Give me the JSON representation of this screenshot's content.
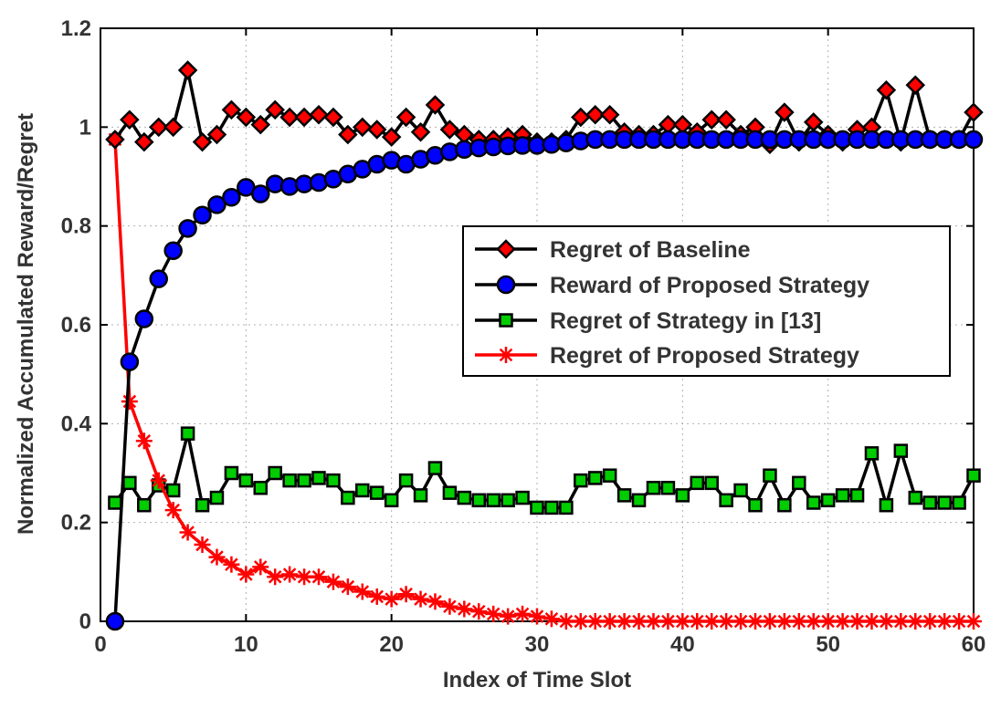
{
  "chart_data": {
    "type": "line",
    "title": "",
    "xlabel": "Index of Time Slot",
    "ylabel": "Normalized Accumulated Reward/Regret",
    "xlim": [
      0,
      60
    ],
    "ylim": [
      0,
      1.2
    ],
    "xticks": [
      0,
      10,
      20,
      30,
      40,
      50,
      60
    ],
    "yticks": [
      0,
      0.2,
      0.4,
      0.6,
      0.8,
      1,
      1.2
    ],
    "xtick_labels": [
      "0",
      "10",
      "20",
      "30",
      "40",
      "50",
      "60"
    ],
    "ytick_labels": [
      "0",
      "0.2",
      "0.4",
      "0.6",
      "0.8",
      "1",
      "1.2"
    ],
    "grid": true,
    "legend_position": "center-right",
    "series": [
      {
        "name": "Regret of Baseline",
        "marker": "diamond",
        "marker_color": "#ff0000",
        "line_color": "#000000",
        "x": [
          1,
          2,
          3,
          4,
          5,
          6,
          7,
          8,
          9,
          10,
          11,
          12,
          13,
          14,
          15,
          16,
          17,
          18,
          19,
          20,
          21,
          22,
          23,
          24,
          25,
          26,
          27,
          28,
          29,
          30,
          31,
          32,
          33,
          34,
          35,
          36,
          37,
          38,
          39,
          40,
          41,
          42,
          43,
          44,
          45,
          46,
          47,
          48,
          49,
          50,
          51,
          52,
          53,
          54,
          55,
          56,
          57,
          58,
          59,
          60
        ],
        "values": [
          0.975,
          1.015,
          0.97,
          1.0,
          1.0,
          1.115,
          0.97,
          0.985,
          1.035,
          1.02,
          1.005,
          1.035,
          1.02,
          1.02,
          1.025,
          1.02,
          0.985,
          1.0,
          0.995,
          0.98,
          1.02,
          0.99,
          1.045,
          0.995,
          0.985,
          0.975,
          0.975,
          0.98,
          0.985,
          0.97,
          0.97,
          0.975,
          1.02,
          1.025,
          1.025,
          0.99,
          0.985,
          0.985,
          1.005,
          1.005,
          0.99,
          1.015,
          1.015,
          0.985,
          1.0,
          0.965,
          1.03,
          0.97,
          1.01,
          0.985,
          0.97,
          0.995,
          1.0,
          1.075,
          0.97,
          1.085,
          0.975,
          0.975,
          0.975,
          1.03
        ]
      },
      {
        "name": "Reward of Proposed Strategy",
        "marker": "circle",
        "marker_color": "#0000ff",
        "line_color": "#000000",
        "x": [
          1,
          2,
          3,
          4,
          5,
          6,
          7,
          8,
          9,
          10,
          11,
          12,
          13,
          14,
          15,
          16,
          17,
          18,
          19,
          20,
          21,
          22,
          23,
          24,
          25,
          26,
          27,
          28,
          29,
          30,
          31,
          32,
          33,
          34,
          35,
          36,
          37,
          38,
          39,
          40,
          41,
          42,
          43,
          44,
          45,
          46,
          47,
          48,
          49,
          50,
          51,
          52,
          53,
          54,
          55,
          56,
          57,
          58,
          59,
          60
        ],
        "values": [
          0.0,
          0.525,
          0.612,
          0.693,
          0.75,
          0.795,
          0.822,
          0.843,
          0.858,
          0.878,
          0.865,
          0.885,
          0.88,
          0.885,
          0.888,
          0.895,
          0.905,
          0.915,
          0.925,
          0.933,
          0.925,
          0.935,
          0.943,
          0.95,
          0.955,
          0.958,
          0.96,
          0.962,
          0.963,
          0.963,
          0.965,
          0.968,
          0.972,
          0.975,
          0.975,
          0.975,
          0.975,
          0.975,
          0.975,
          0.975,
          0.975,
          0.975,
          0.975,
          0.975,
          0.975,
          0.975,
          0.975,
          0.975,
          0.975,
          0.975,
          0.975,
          0.975,
          0.975,
          0.975,
          0.975,
          0.975,
          0.975,
          0.975,
          0.975,
          0.975
        ]
      },
      {
        "name": "Regret of Strategy in [13]",
        "marker": "square",
        "marker_color": "#00cc00",
        "line_color": "#000000",
        "x": [
          1,
          2,
          3,
          4,
          5,
          6,
          7,
          8,
          9,
          10,
          11,
          12,
          13,
          14,
          15,
          16,
          17,
          18,
          19,
          20,
          21,
          22,
          23,
          24,
          25,
          26,
          27,
          28,
          29,
          30,
          31,
          32,
          33,
          34,
          35,
          36,
          37,
          38,
          39,
          40,
          41,
          42,
          43,
          44,
          45,
          46,
          47,
          48,
          49,
          50,
          51,
          52,
          53,
          54,
          55,
          56,
          57,
          58,
          59,
          60
        ],
        "values": [
          0.24,
          0.28,
          0.235,
          0.275,
          0.265,
          0.38,
          0.235,
          0.25,
          0.3,
          0.285,
          0.27,
          0.3,
          0.285,
          0.285,
          0.29,
          0.285,
          0.25,
          0.265,
          0.26,
          0.245,
          0.285,
          0.255,
          0.31,
          0.26,
          0.25,
          0.245,
          0.245,
          0.245,
          0.25,
          0.23,
          0.23,
          0.23,
          0.285,
          0.29,
          0.295,
          0.255,
          0.245,
          0.27,
          0.27,
          0.255,
          0.28,
          0.28,
          0.245,
          0.265,
          0.235,
          0.295,
          0.235,
          0.28,
          0.24,
          0.245,
          0.255,
          0.255,
          0.34,
          0.235,
          0.345,
          0.25,
          0.24,
          0.24,
          0.24,
          0.295
        ]
      },
      {
        "name": "Regret of Proposed Strategy",
        "marker": "asterisk",
        "marker_color": "#ff0000",
        "line_color": "#ff0000",
        "x": [
          1,
          2,
          3,
          4,
          5,
          6,
          7,
          8,
          9,
          10,
          11,
          12,
          13,
          14,
          15,
          16,
          17,
          18,
          19,
          20,
          21,
          22,
          23,
          24,
          25,
          26,
          27,
          28,
          29,
          30,
          31,
          32,
          33,
          34,
          35,
          36,
          37,
          38,
          39,
          40,
          41,
          42,
          43,
          44,
          45,
          46,
          47,
          48,
          49,
          50,
          51,
          52,
          53,
          54,
          55,
          56,
          57,
          58,
          59,
          60
        ],
        "values": [
          0.975,
          0.445,
          0.365,
          0.285,
          0.225,
          0.18,
          0.155,
          0.13,
          0.115,
          0.095,
          0.11,
          0.09,
          0.095,
          0.09,
          0.09,
          0.08,
          0.07,
          0.06,
          0.05,
          0.045,
          0.055,
          0.045,
          0.04,
          0.03,
          0.025,
          0.02,
          0.015,
          0.01,
          0.015,
          0.01,
          0.005,
          0.0,
          0.0,
          0.0,
          0.0,
          0.0,
          0.0,
          0.0,
          0.0,
          0.0,
          0.0,
          0.0,
          0.0,
          0.0,
          0.0,
          0.0,
          0.0,
          0.0,
          0.0,
          0.0,
          0.0,
          0.0,
          0.0,
          0.0,
          0.0,
          0.0,
          0.0,
          0.0,
          0.0,
          0.0
        ]
      }
    ]
  }
}
